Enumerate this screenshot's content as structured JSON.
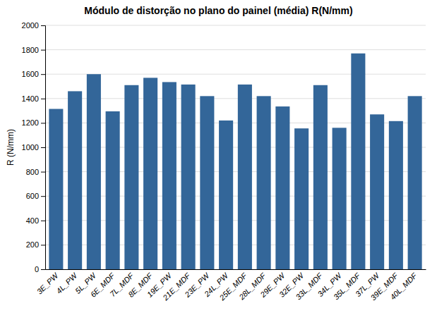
{
  "chart_data": {
    "type": "bar",
    "title": "Módulo de distorção no plano do painel (média) R(N/mm)",
    "ylabel": "R (N/mm)",
    "categories": [
      "3E_PW",
      "4L_PW",
      "5L_PW",
      "6E_MDF",
      "7L_MDF",
      "8E_MDF",
      "19E_PW",
      "21E_MDF",
      "23E_PW",
      "24L_PW",
      "25E_MDF",
      "28L_MDF",
      "29E_PW",
      "32E_PW",
      "33L_MDF",
      "34L_PW",
      "35L_MDF",
      "37L_PW",
      "39E_MDF",
      "40L_MDF"
    ],
    "values": [
      1315,
      1460,
      1600,
      1295,
      1510,
      1570,
      1535,
      1515,
      1420,
      1220,
      1515,
      1420,
      1335,
      1155,
      1510,
      1160,
      1770,
      1270,
      1215,
      1420
    ],
    "color": "#336699",
    "ylim": [
      0,
      2000
    ],
    "yticks": [
      0,
      200,
      400,
      600,
      800,
      1000,
      1200,
      1400,
      1600,
      1800,
      2000
    ],
    "grid": true
  }
}
